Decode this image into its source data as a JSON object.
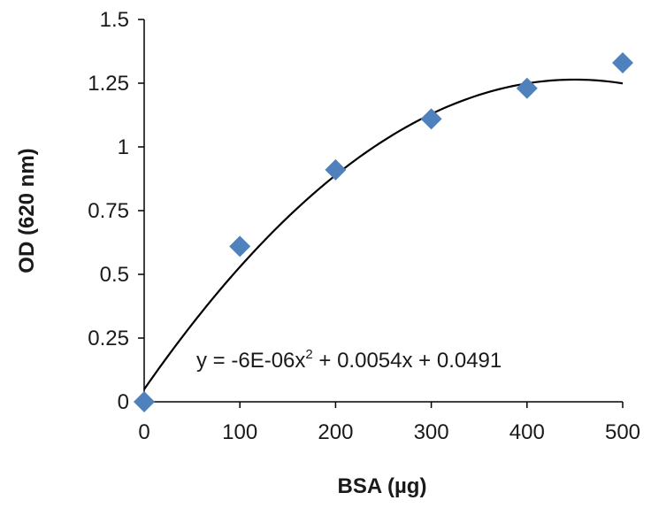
{
  "chart_data": {
    "type": "scatter",
    "xlabel": "BSA (µg)",
    "ylabel": "OD (620 nm)",
    "xlim": [
      0,
      500
    ],
    "ylim": [
      0,
      1.5
    ],
    "x_ticks": [
      0,
      100,
      200,
      300,
      400,
      500
    ],
    "y_ticks": [
      0,
      0.25,
      0.5,
      0.75,
      1,
      1.25,
      1.5
    ],
    "x_tick_labels": [
      "0",
      "100",
      "200",
      "300",
      "400",
      "500"
    ],
    "y_tick_labels": [
      "0",
      "0.25",
      "0.5",
      "0.75",
      "1",
      "1.25",
      "1.5"
    ],
    "grid": false,
    "legend": "none",
    "series": [
      {
        "x": [
          0,
          100,
          200,
          300,
          400,
          500
        ],
        "values": [
          0.0,
          0.61,
          0.91,
          1.11,
          1.23,
          1.33
        ],
        "marker": "diamond",
        "color": "#4f81bd"
      }
    ],
    "trendline": {
      "type": "polynomial",
      "coefficients": {
        "a": -6e-06,
        "b": 0.0054,
        "c": 0.0491
      },
      "color": "#000000",
      "equation_text": {
        "prefix": "y = -6E-06x",
        "superscript": "2",
        "suffix": " + 0.0054x + 0.0491"
      }
    }
  }
}
